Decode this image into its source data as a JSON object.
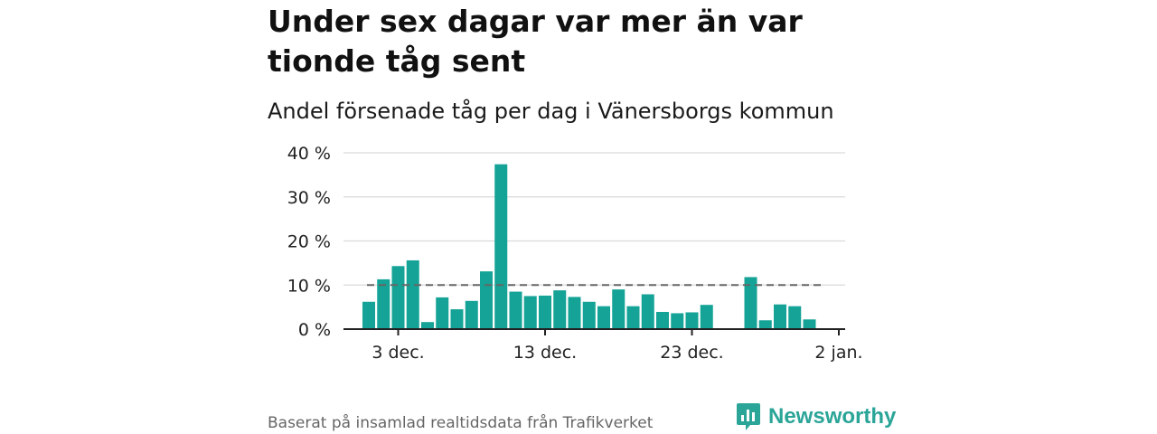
{
  "title": "Under sex dagar var mer än var tionde tåg sent",
  "subtitle": "Andel försenade tåg per dag i Vänersborgs kommun",
  "caption": "Baserat på insamlad realtidsdata från Trafikverket",
  "brand": {
    "name": "Newsworthy",
    "icon": "newsworthy-logo-icon"
  },
  "colors": {
    "bar": "#14a396",
    "reference": "#666666",
    "grid": "#d9d9d9",
    "brand": "#2aa597"
  },
  "chart_data": {
    "type": "bar",
    "x_axis": "date",
    "x_start_date": "2023-12-01",
    "dates": [
      "2023-12-01",
      "2023-12-02",
      "2023-12-03",
      "2023-12-04",
      "2023-12-05",
      "2023-12-06",
      "2023-12-07",
      "2023-12-08",
      "2023-12-09",
      "2023-12-10",
      "2023-12-11",
      "2023-12-12",
      "2023-12-13",
      "2023-12-14",
      "2023-12-15",
      "2023-12-16",
      "2023-12-17",
      "2023-12-18",
      "2023-12-19",
      "2023-12-20",
      "2023-12-21",
      "2023-12-22",
      "2023-12-23",
      "2023-12-24",
      "2023-12-25",
      "2023-12-26",
      "2023-12-27",
      "2023-12-28",
      "2023-12-29",
      "2023-12-30",
      "2023-12-31",
      "2024-01-01"
    ],
    "values": [
      6.2,
      11.3,
      14.3,
      15.6,
      1.6,
      7.2,
      4.5,
      6.4,
      13.1,
      37.4,
      8.5,
      7.5,
      7.6,
      8.8,
      7.3,
      6.2,
      5.2,
      9.0,
      5.2,
      7.9,
      3.9,
      3.6,
      3.8,
      5.5,
      null,
      null,
      11.8,
      2.0,
      5.6,
      5.2,
      2.2,
      null
    ],
    "reference_line": 10,
    "ylim": [
      0,
      40
    ],
    "y_ticks": [
      "0 %",
      "10 %",
      "20 %",
      "30 %",
      "40 %"
    ],
    "x_tick_labels": [
      "3 dec.",
      "13 dec.",
      "23 dec.",
      "2 jan."
    ],
    "grid": true
  }
}
